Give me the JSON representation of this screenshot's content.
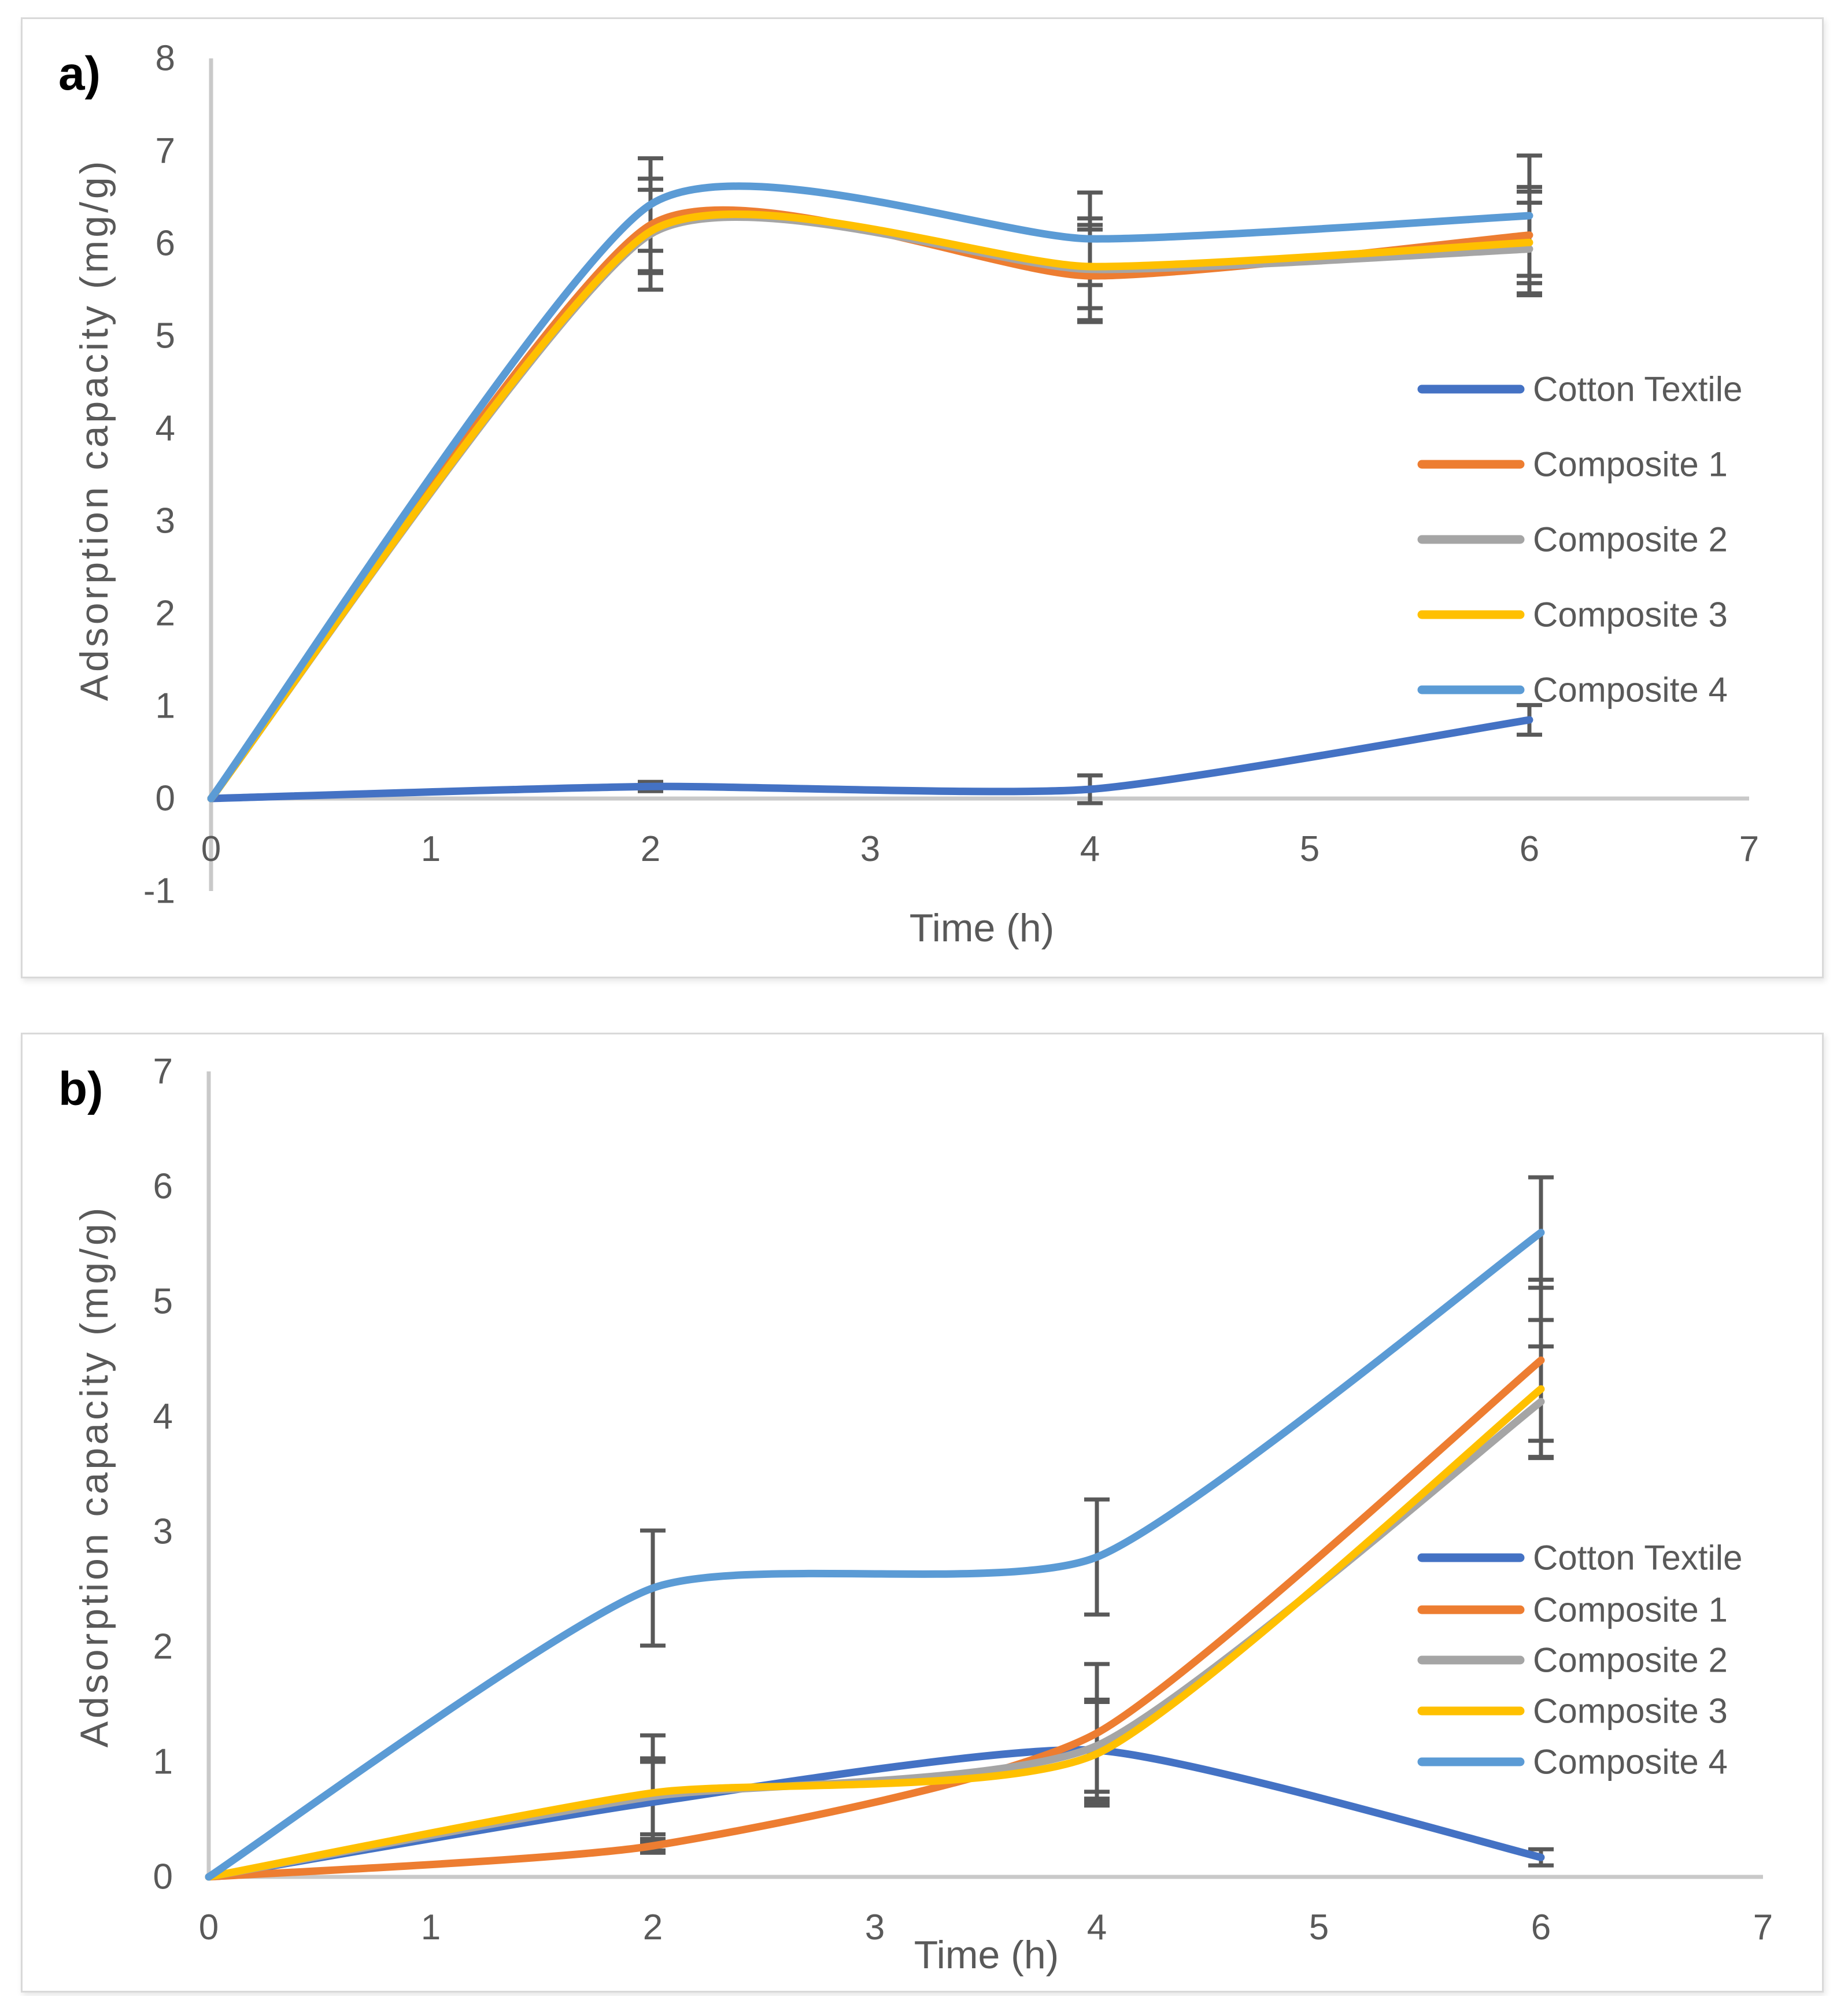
{
  "style": {
    "text_color": "#595959",
    "axis_color": "#c9c9c9",
    "error_bar_color": "#595959",
    "panel_border_color": "#d9d9d9"
  },
  "chart_data": [
    {
      "id": "a",
      "type": "line",
      "panel_label": "a)",
      "xlabel": "Time (h)",
      "ylabel": "Adsorption capacity (mg/g)",
      "x": [
        0,
        2,
        4,
        6
      ],
      "xlim": [
        0,
        7
      ],
      "ylim": [
        -1,
        8
      ],
      "xticks": [
        "0",
        "1",
        "2",
        "3",
        "4",
        "5",
        "6",
        "7"
      ],
      "yticks": [
        "8",
        "7",
        "6",
        "5",
        "4",
        "3",
        "2",
        "1",
        "0",
        "-1"
      ],
      "legend_position": "right-middle",
      "series": [
        {
          "name": "Cotton Textile",
          "color": "#4472C4",
          "values": [
            0,
            0.13,
            0.1,
            0.85
          ],
          "err": [
            0,
            0.05,
            0.15,
            0.16
          ]
        },
        {
          "name": "Composite 1",
          "color": "#ED7D31",
          "values": [
            0,
            6.2,
            5.65,
            6.09
          ],
          "err": [
            0,
            0.5,
            0.5,
            0.52
          ]
        },
        {
          "name": "Composite 2",
          "color": "#A5A5A5",
          "values": [
            0,
            6.1,
            5.72,
            5.94
          ],
          "err": [
            0,
            0.6,
            0.55,
            0.5
          ]
        },
        {
          "name": "Composite 3",
          "color": "#FFC000",
          "values": [
            0,
            6.13,
            5.75,
            6.01
          ],
          "err": [
            0,
            0.45,
            0.45,
            0.55
          ]
        },
        {
          "name": "Composite 4",
          "color": "#5B9BD5",
          "values": [
            0,
            6.42,
            6.05,
            6.3
          ],
          "err": [
            0,
            0.5,
            0.5,
            0.65
          ]
        }
      ]
    },
    {
      "id": "b",
      "type": "line",
      "panel_label": "b)",
      "xlabel": "Time (h)",
      "ylabel": "Adsorption capacity (mg/g)",
      "x": [
        0,
        2,
        4,
        6
      ],
      "xlim": [
        0,
        7
      ],
      "ylim": [
        0,
        7
      ],
      "xticks": [
        "0",
        "1",
        "2",
        "3",
        "4",
        "5",
        "6",
        "7"
      ],
      "yticks": [
        "7",
        "6",
        "5",
        "4",
        "3",
        "2",
        "1",
        "0"
      ],
      "legend_position": "right-middle",
      "series": [
        {
          "name": "Cotton Textile",
          "color": "#4472C4",
          "values": [
            0,
            0.65,
            1.1,
            0.17
          ],
          "err": [
            0,
            0.35,
            0.42,
            0.07
          ]
        },
        {
          "name": "Composite 1",
          "color": "#ED7D31",
          "values": [
            0,
            0.27,
            1.25,
            4.49
          ],
          "err": [
            0,
            0.06,
            0.6,
            0.7
          ]
        },
        {
          "name": "Composite 2",
          "color": "#A5A5A5",
          "values": [
            0,
            0.7,
            1.14,
            4.13
          ],
          "err": [
            0,
            0.33,
            0.4,
            0.48
          ]
        },
        {
          "name": "Composite 3",
          "color": "#FFC000",
          "values": [
            0,
            0.73,
            1.07,
            4.24
          ],
          "err": [
            0,
            0.5,
            0.45,
            0.6
          ]
        },
        {
          "name": "Composite 4",
          "color": "#5B9BD5",
          "values": [
            0,
            2.51,
            2.78,
            5.6
          ],
          "err": [
            0,
            0.5,
            0.5,
            0.48
          ]
        }
      ]
    }
  ]
}
